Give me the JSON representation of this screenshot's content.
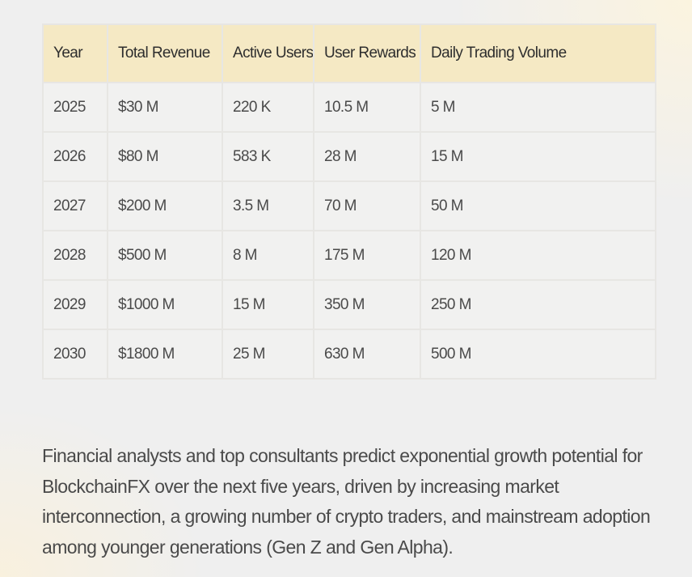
{
  "table": {
    "headers": [
      "Year",
      "Total Revenue",
      "Active Users",
      "User Rewards",
      "Daily Trading Volume"
    ],
    "rows": [
      [
        "2025",
        "$30 M",
        "220 K",
        "10.5 M",
        "5 M"
      ],
      [
        "2026",
        "$80 M",
        "583 K",
        "28 M",
        "15 M"
      ],
      [
        "2027",
        "$200 M",
        "3.5 M",
        "70 M",
        "50 M"
      ],
      [
        "2028",
        "$500 M",
        "8 M",
        "175 M",
        "120 M"
      ],
      [
        "2029",
        "$1000 M",
        "15 M",
        "350 M",
        "250 M"
      ],
      [
        "2030",
        "$1800 M",
        "25 M",
        "630 M",
        "500 M"
      ]
    ]
  },
  "summary": {
    "text": "Financial analysts and top consultants predict exponential growth potential for BlockchainFX over the next five years, driven by increasing market interconnection, a growing number of crypto traders, and mainstream adoption among younger generations (Gen Z and Gen Alpha)."
  },
  "colors": {
    "header_background": "#f5e9c4",
    "cell_background": "#f1f1f0",
    "border": "#e7e6e3",
    "text": "#4a4a4a"
  }
}
